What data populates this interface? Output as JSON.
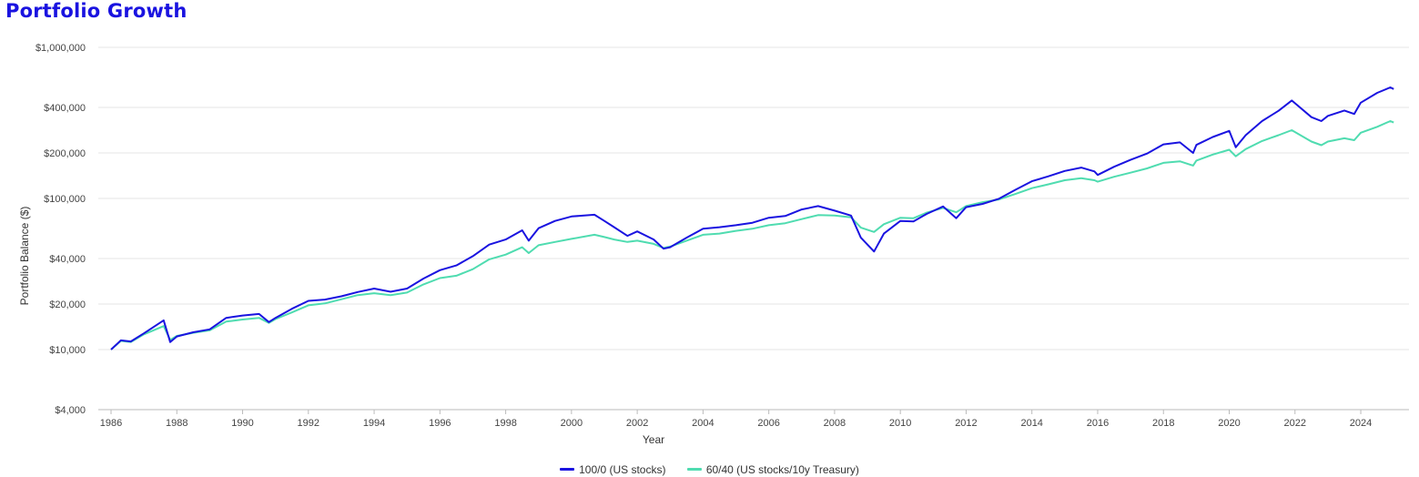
{
  "title": "Portfolio Growth",
  "colors": {
    "title": "#1a13e0",
    "stocks": "#1a13e0",
    "balanced": "#4fdcb0",
    "grid": "#e4e4e4"
  },
  "chart_data": {
    "type": "line",
    "title": "Portfolio Growth",
    "xlabel": "Year",
    "ylabel": "Portfolio Balance ($)",
    "yscale": "log",
    "ylim": [
      4000,
      1000000
    ],
    "xlim": [
      1986,
      2025
    ],
    "grid": true,
    "legend_position": "bottom",
    "y_ticks": [
      4000,
      10000,
      20000,
      40000,
      100000,
      200000,
      400000,
      1000000
    ],
    "y_tick_labels": [
      "$4,000",
      "$10,000",
      "$20,000",
      "$40,000",
      "$100,000",
      "$200,000",
      "$400,000",
      "$1,000,000"
    ],
    "x_ticks": [
      1986,
      1988,
      1990,
      1992,
      1994,
      1996,
      1998,
      2000,
      2002,
      2004,
      2006,
      2008,
      2010,
      2012,
      2014,
      2016,
      2018,
      2020,
      2022,
      2024
    ],
    "series": [
      {
        "name": "100/0 (US stocks)",
        "points": [
          [
            1986.0,
            10000
          ],
          [
            1986.3,
            11500
          ],
          [
            1986.6,
            11300
          ],
          [
            1987.0,
            12800
          ],
          [
            1987.6,
            15600
          ],
          [
            1987.8,
            11200
          ],
          [
            1988.0,
            12200
          ],
          [
            1988.5,
            13000
          ],
          [
            1989.0,
            13600
          ],
          [
            1989.5,
            16200
          ],
          [
            1990.0,
            16800
          ],
          [
            1990.5,
            17200
          ],
          [
            1990.8,
            15200
          ],
          [
            1991.0,
            16200
          ],
          [
            1991.5,
            18600
          ],
          [
            1992.0,
            21000
          ],
          [
            1992.5,
            21400
          ],
          [
            1993.0,
            22500
          ],
          [
            1993.5,
            24000
          ],
          [
            1994.0,
            25300
          ],
          [
            1994.5,
            24100
          ],
          [
            1995.0,
            25300
          ],
          [
            1995.5,
            29500
          ],
          [
            1996.0,
            33500
          ],
          [
            1996.5,
            36000
          ],
          [
            1997.0,
            41500
          ],
          [
            1997.5,
            49500
          ],
          [
            1998.0,
            53500
          ],
          [
            1998.5,
            61500
          ],
          [
            1998.7,
            52500
          ],
          [
            1999.0,
            63500
          ],
          [
            1999.5,
            71000
          ],
          [
            2000.0,
            76000
          ],
          [
            2000.7,
            78000
          ],
          [
            2001.0,
            71000
          ],
          [
            2001.3,
            64500
          ],
          [
            2001.7,
            56500
          ],
          [
            2002.0,
            60500
          ],
          [
            2002.5,
            53500
          ],
          [
            2002.8,
            46500
          ],
          [
            2003.0,
            47500
          ],
          [
            2003.5,
            55000
          ],
          [
            2004.0,
            63000
          ],
          [
            2004.5,
            64500
          ],
          [
            2005.0,
            66500
          ],
          [
            2005.5,
            69000
          ],
          [
            2006.0,
            74500
          ],
          [
            2006.5,
            76500
          ],
          [
            2007.0,
            84500
          ],
          [
            2007.5,
            89000
          ],
          [
            2008.0,
            83000
          ],
          [
            2008.5,
            77000
          ],
          [
            2008.8,
            55000
          ],
          [
            2009.2,
            44500
          ],
          [
            2009.5,
            58500
          ],
          [
            2010.0,
            71000
          ],
          [
            2010.4,
            70500
          ],
          [
            2010.8,
            79000
          ],
          [
            2011.3,
            88500
          ],
          [
            2011.7,
            74000
          ],
          [
            2012.0,
            87500
          ],
          [
            2012.5,
            92000
          ],
          [
            2013.0,
            99500
          ],
          [
            2013.5,
            114000
          ],
          [
            2014.0,
            130000
          ],
          [
            2014.5,
            140000
          ],
          [
            2015.0,
            152000
          ],
          [
            2015.5,
            160000
          ],
          [
            2015.9,
            151000
          ],
          [
            2016.0,
            143000
          ],
          [
            2016.5,
            162000
          ],
          [
            2017.0,
            180000
          ],
          [
            2017.5,
            198000
          ],
          [
            2018.0,
            228000
          ],
          [
            2018.5,
            235000
          ],
          [
            2018.9,
            200000
          ],
          [
            2019.0,
            226000
          ],
          [
            2019.5,
            255000
          ],
          [
            2020.0,
            280000
          ],
          [
            2020.2,
            218000
          ],
          [
            2020.5,
            262000
          ],
          [
            2021.0,
            325000
          ],
          [
            2021.5,
            380000
          ],
          [
            2021.9,
            445000
          ],
          [
            2022.5,
            345000
          ],
          [
            2022.8,
            325000
          ],
          [
            2023.0,
            352000
          ],
          [
            2023.5,
            382000
          ],
          [
            2023.8,
            362000
          ],
          [
            2024.0,
            430000
          ],
          [
            2024.5,
            500000
          ],
          [
            2024.9,
            543000
          ],
          [
            2025.0,
            530000
          ]
        ]
      },
      {
        "name": "60/40 (US stocks/10y Treasury)",
        "points": [
          [
            1986.0,
            10000
          ],
          [
            1986.3,
            11400
          ],
          [
            1986.6,
            11200
          ],
          [
            1987.0,
            12600
          ],
          [
            1987.6,
            14300
          ],
          [
            1987.8,
            11600
          ],
          [
            1988.0,
            12300
          ],
          [
            1988.5,
            12900
          ],
          [
            1989.0,
            13400
          ],
          [
            1989.5,
            15300
          ],
          [
            1990.0,
            15800
          ],
          [
            1990.5,
            16200
          ],
          [
            1990.8,
            15000
          ],
          [
            1991.0,
            15900
          ],
          [
            1991.5,
            17600
          ],
          [
            1992.0,
            19600
          ],
          [
            1992.5,
            20200
          ],
          [
            1993.0,
            21500
          ],
          [
            1993.5,
            22900
          ],
          [
            1994.0,
            23600
          ],
          [
            1994.5,
            22900
          ],
          [
            1995.0,
            23800
          ],
          [
            1995.5,
            27000
          ],
          [
            1996.0,
            29700
          ],
          [
            1996.5,
            30800
          ],
          [
            1997.0,
            34000
          ],
          [
            1997.5,
            39500
          ],
          [
            1998.0,
            42500
          ],
          [
            1998.5,
            47500
          ],
          [
            1998.7,
            43500
          ],
          [
            1999.0,
            49000
          ],
          [
            1999.5,
            51500
          ],
          [
            2000.0,
            54000
          ],
          [
            2000.7,
            57500
          ],
          [
            2001.0,
            55500
          ],
          [
            2001.3,
            53500
          ],
          [
            2001.7,
            51500
          ],
          [
            2002.0,
            52500
          ],
          [
            2002.5,
            50000
          ],
          [
            2002.8,
            47000
          ],
          [
            2003.0,
            48000
          ],
          [
            2003.5,
            52500
          ],
          [
            2004.0,
            57500
          ],
          [
            2004.5,
            58500
          ],
          [
            2005.0,
            61000
          ],
          [
            2005.5,
            63000
          ],
          [
            2006.0,
            66500
          ],
          [
            2006.5,
            68500
          ],
          [
            2007.0,
            73000
          ],
          [
            2007.5,
            77500
          ],
          [
            2008.0,
            77000
          ],
          [
            2008.5,
            75000
          ],
          [
            2008.8,
            64000
          ],
          [
            2009.2,
            60000
          ],
          [
            2009.5,
            67500
          ],
          [
            2010.0,
            74500
          ],
          [
            2010.4,
            74000
          ],
          [
            2010.8,
            80500
          ],
          [
            2011.3,
            86500
          ],
          [
            2011.7,
            81000
          ],
          [
            2012.0,
            89000
          ],
          [
            2012.5,
            94500
          ],
          [
            2013.0,
            98500
          ],
          [
            2013.5,
            107000
          ],
          [
            2014.0,
            117000
          ],
          [
            2014.5,
            124000
          ],
          [
            2015.0,
            132000
          ],
          [
            2015.5,
            136000
          ],
          [
            2015.9,
            132000
          ],
          [
            2016.0,
            129000
          ],
          [
            2016.5,
            139000
          ],
          [
            2017.0,
            148000
          ],
          [
            2017.5,
            158000
          ],
          [
            2018.0,
            172000
          ],
          [
            2018.5,
            176000
          ],
          [
            2018.9,
            165000
          ],
          [
            2019.0,
            178000
          ],
          [
            2019.5,
            195000
          ],
          [
            2020.0,
            210000
          ],
          [
            2020.2,
            190000
          ],
          [
            2020.5,
            212000
          ],
          [
            2021.0,
            240000
          ],
          [
            2021.5,
            262000
          ],
          [
            2021.9,
            283000
          ],
          [
            2022.5,
            238000
          ],
          [
            2022.8,
            225000
          ],
          [
            2023.0,
            238000
          ],
          [
            2023.5,
            250000
          ],
          [
            2023.8,
            243000
          ],
          [
            2024.0,
            272000
          ],
          [
            2024.5,
            298000
          ],
          [
            2024.9,
            325000
          ],
          [
            2025.0,
            318000
          ]
        ]
      }
    ]
  }
}
